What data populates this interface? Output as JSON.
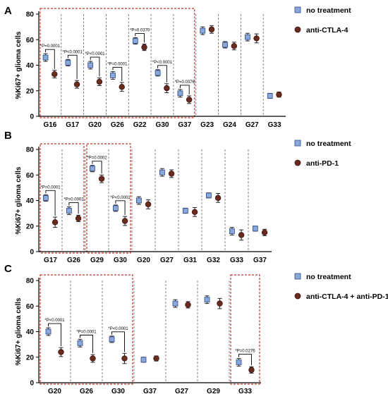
{
  "figure": {
    "colors": {
      "no_treatment": "#8aa7dc",
      "no_treatment_edge": "#2e4a86",
      "treated": "#6b2a1f",
      "treated_edge": "#3a120b",
      "box": "#c0392b",
      "divider": "#666666",
      "axis": "#000000"
    }
  },
  "chart_data": [
    {
      "panel_letter": "A",
      "type": "scatter",
      "ylabel": "%Ki67+ glioma cells",
      "ylim": [
        0,
        80
      ],
      "yticks": [
        0,
        20,
        40,
        60,
        80
      ],
      "categories": [
        "G16",
        "G17",
        "G20",
        "G26",
        "G22",
        "G30",
        "G37",
        "G23",
        "G24",
        "G27",
        "G33"
      ],
      "legend_position": "right",
      "series": [
        {
          "name": "no treatment",
          "color": "#8aa7dc",
          "marker": "square",
          "values": [
            46,
            42,
            40,
            32,
            59,
            34,
            18,
            67,
            56,
            62,
            16
          ],
          "errors": [
            3,
            2.5,
            3,
            3,
            2.5,
            2.5,
            3,
            3,
            2.5,
            3,
            2
          ]
        },
        {
          "name": "anti-CTLA-4",
          "color": "#6b2a1f",
          "marker": "circle",
          "values": [
            33,
            25,
            27,
            23,
            54,
            22,
            13,
            68,
            55,
            61,
            17
          ],
          "errors": [
            3,
            3,
            3,
            3.5,
            2.5,
            3.5,
            3,
            3,
            3,
            3.5,
            2
          ]
        }
      ],
      "annotations": [
        {
          "category_index": 0,
          "text": "*P=0.0001"
        },
        {
          "category_index": 1,
          "text": "*P<0.0001"
        },
        {
          "category_index": 2,
          "text": "*P<0.0001"
        },
        {
          "category_index": 3,
          "text": "*P=0.0001"
        },
        {
          "category_index": 4,
          "text": "*P=0.0370"
        },
        {
          "category_index": 5,
          "text": "*P<0.0001"
        },
        {
          "category_index": 6,
          "text": "*P=0.0376"
        }
      ],
      "highlight_ranges": [
        [
          0,
          6
        ]
      ]
    },
    {
      "panel_letter": "B",
      "type": "scatter",
      "ylabel": "%Ki67+ glioma cells",
      "ylim": [
        0,
        80
      ],
      "yticks": [
        0,
        20,
        40,
        60,
        80
      ],
      "categories": [
        "G17",
        "G26",
        "G29",
        "G30",
        "G20",
        "G27",
        "G31",
        "G32",
        "G33",
        "G37"
      ],
      "legend_position": "right",
      "series": [
        {
          "name": "no treatment",
          "color": "#8aa7dc",
          "marker": "square",
          "values": [
            42,
            32,
            65,
            34,
            40,
            62,
            32,
            44,
            16,
            18
          ],
          "errors": [
            2.5,
            3,
            2.5,
            2.5,
            3,
            3,
            2,
            2,
            3,
            2
          ]
        },
        {
          "name": "anti-PD-1",
          "color": "#6b2a1f",
          "marker": "circle",
          "values": [
            23,
            26,
            57,
            24,
            37,
            61,
            31,
            42,
            13,
            15
          ],
          "errors": [
            4,
            2.5,
            3,
            3.5,
            3.5,
            3,
            3.5,
            3.5,
            4,
            2.5
          ]
        }
      ],
      "annotations": [
        {
          "category_index": 0,
          "text": "*P=0.0001"
        },
        {
          "category_index": 1,
          "text": "*P=0.0002"
        },
        {
          "category_index": 2,
          "text": "*P=0.0002"
        },
        {
          "category_index": 3,
          "text": "*P<0.0001"
        }
      ],
      "highlight_ranges": [
        [
          0,
          1
        ],
        [
          2,
          3
        ]
      ]
    },
    {
      "panel_letter": "C",
      "type": "scatter",
      "ylabel": "%Ki67+ glioma cells",
      "ylim": [
        0,
        80
      ],
      "yticks": [
        0,
        20,
        40,
        60,
        80
      ],
      "categories": [
        "G20",
        "G26",
        "G30",
        "G37",
        "G27",
        "G29",
        "G33"
      ],
      "legend_position": "right",
      "series": [
        {
          "name": "no treatment",
          "color": "#8aa7dc",
          "marker": "square",
          "values": [
            40,
            31,
            34,
            18,
            62,
            65,
            16
          ],
          "errors": [
            3,
            3,
            2.5,
            2,
            3,
            3,
            3
          ]
        },
        {
          "name": "anti-CTLA-4 + anti-PD-1",
          "color": "#6b2a1f",
          "marker": "circle",
          "values": [
            24,
            19,
            19,
            19,
            61,
            62,
            10
          ],
          "errors": [
            3.5,
            3,
            4,
            2,
            2.5,
            4,
            2.5
          ]
        }
      ],
      "annotations": [
        {
          "category_index": 0,
          "text": "*P<0.0001"
        },
        {
          "category_index": 1,
          "text": "*P=0.0001"
        },
        {
          "category_index": 2,
          "text": "*P<0.0001"
        },
        {
          "category_index": 6,
          "text": "*P=0.0276"
        }
      ],
      "highlight_ranges": [
        [
          0,
          2
        ],
        [
          6,
          6
        ]
      ]
    }
  ]
}
